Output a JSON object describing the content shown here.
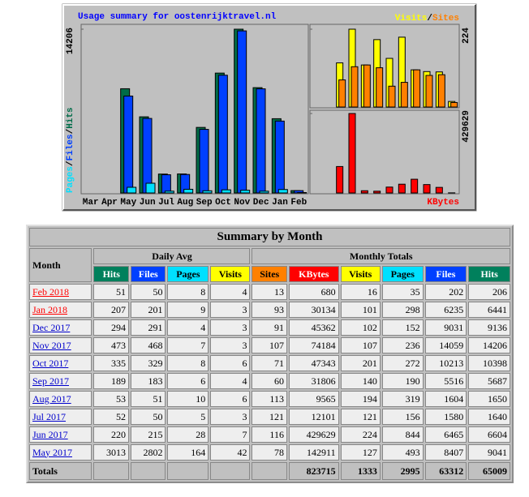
{
  "chart_data": [
    {
      "type": "bar",
      "title": "Usage summary for oostenrijktravel.nl",
      "categories": [
        "Mar",
        "Apr",
        "May",
        "Jun",
        "Jul",
        "Aug",
        "Sep",
        "Oct",
        "Nov",
        "Dec",
        "Jan",
        "Feb"
      ],
      "legend_separator": "/",
      "ylim": [
        0,
        14206
      ],
      "yticks": [
        14206
      ],
      "series": [
        {
          "name": "Hits",
          "color": "#006c48",
          "values": [
            null,
            null,
            9041,
            6604,
            1640,
            1650,
            5687,
            10398,
            14206,
            9136,
            6441,
            206
          ]
        },
        {
          "name": "Files",
          "color": "#0040ff",
          "values": [
            null,
            null,
            8407,
            6465,
            1580,
            1604,
            5516,
            10213,
            14059,
            9031,
            6235,
            202
          ]
        },
        {
          "name": "Pages",
          "color": "#00e0ff",
          "values": [
            null,
            null,
            493,
            844,
            156,
            319,
            190,
            272,
            236,
            152,
            298,
            35
          ]
        }
      ]
    },
    {
      "type": "bar",
      "ylim": [
        0,
        224
      ],
      "yticks": [
        224
      ],
      "series": [
        {
          "name": "Visits",
          "color": "#ffff00",
          "values": [
            null,
            null,
            127,
            224,
            121,
            194,
            140,
            201,
            107,
            102,
            101,
            16
          ]
        },
        {
          "name": "Sites",
          "color": "#ff8000",
          "values": [
            null,
            null,
            78,
            116,
            121,
            113,
            60,
            71,
            107,
            91,
            93,
            13
          ]
        }
      ]
    },
    {
      "type": "bar",
      "ylim": [
        0,
        429629
      ],
      "yticks": [
        429629
      ],
      "series": [
        {
          "name": "KBytes",
          "color": "#ff0000",
          "values": [
            null,
            null,
            142911,
            429629,
            12101,
            9565,
            31806,
            47343,
            74184,
            45362,
            30134,
            680
          ]
        }
      ]
    }
  ],
  "table": {
    "title": "Summary by Month",
    "month_header": "Month",
    "daily_avg": "Daily Avg",
    "monthly_totals": "Monthly Totals",
    "columns": [
      {
        "name": "Hits",
        "color": "#00805c"
      },
      {
        "name": "Files",
        "color": "#0040ff"
      },
      {
        "name": "Pages",
        "color": "#00e0ff"
      },
      {
        "name": "Visits",
        "color": "#ffff00"
      },
      {
        "name": "Sites",
        "color": "#ff8000"
      },
      {
        "name": "KBytes",
        "color": "#ff0000"
      },
      {
        "name": "Visits",
        "color": "#ffff00"
      },
      {
        "name": "Pages",
        "color": "#00e0ff"
      },
      {
        "name": "Files",
        "color": "#0040ff"
      },
      {
        "name": "Hits",
        "color": "#00805c"
      }
    ],
    "rows": [
      {
        "month": "Feb 2018",
        "values": [
          51,
          50,
          8,
          4,
          13,
          680,
          16,
          35,
          202,
          206
        ]
      },
      {
        "month": "Jan 2018",
        "values": [
          207,
          201,
          9,
          3,
          93,
          30134,
          101,
          298,
          6235,
          6441
        ]
      },
      {
        "month": "Dec 2017",
        "values": [
          294,
          291,
          4,
          3,
          91,
          45362,
          102,
          152,
          9031,
          9136
        ]
      },
      {
        "month": "Nov 2017",
        "values": [
          473,
          468,
          7,
          3,
          107,
          74184,
          107,
          236,
          14059,
          14206
        ]
      },
      {
        "month": "Oct 2017",
        "values": [
          335,
          329,
          8,
          6,
          71,
          47343,
          201,
          272,
          10213,
          10398
        ]
      },
      {
        "month": "Sep 2017",
        "values": [
          189,
          183,
          6,
          4,
          60,
          31806,
          140,
          190,
          5516,
          5687
        ]
      },
      {
        "month": "Aug 2017",
        "values": [
          53,
          51,
          10,
          6,
          113,
          9565,
          194,
          319,
          1604,
          1650
        ]
      },
      {
        "month": "Jul 2017",
        "values": [
          52,
          50,
          5,
          3,
          121,
          12101,
          121,
          156,
          1580,
          1640
        ]
      },
      {
        "month": "Jun 2017",
        "values": [
          220,
          215,
          28,
          7,
          116,
          429629,
          224,
          844,
          6465,
          6604
        ]
      },
      {
        "month": "May 2017",
        "values": [
          3013,
          2802,
          164,
          42,
          78,
          142911,
          127,
          493,
          8407,
          9041
        ]
      }
    ],
    "totals": {
      "label": "Totals",
      "values": [
        823715,
        1333,
        2995,
        63312,
        65009
      ]
    }
  }
}
